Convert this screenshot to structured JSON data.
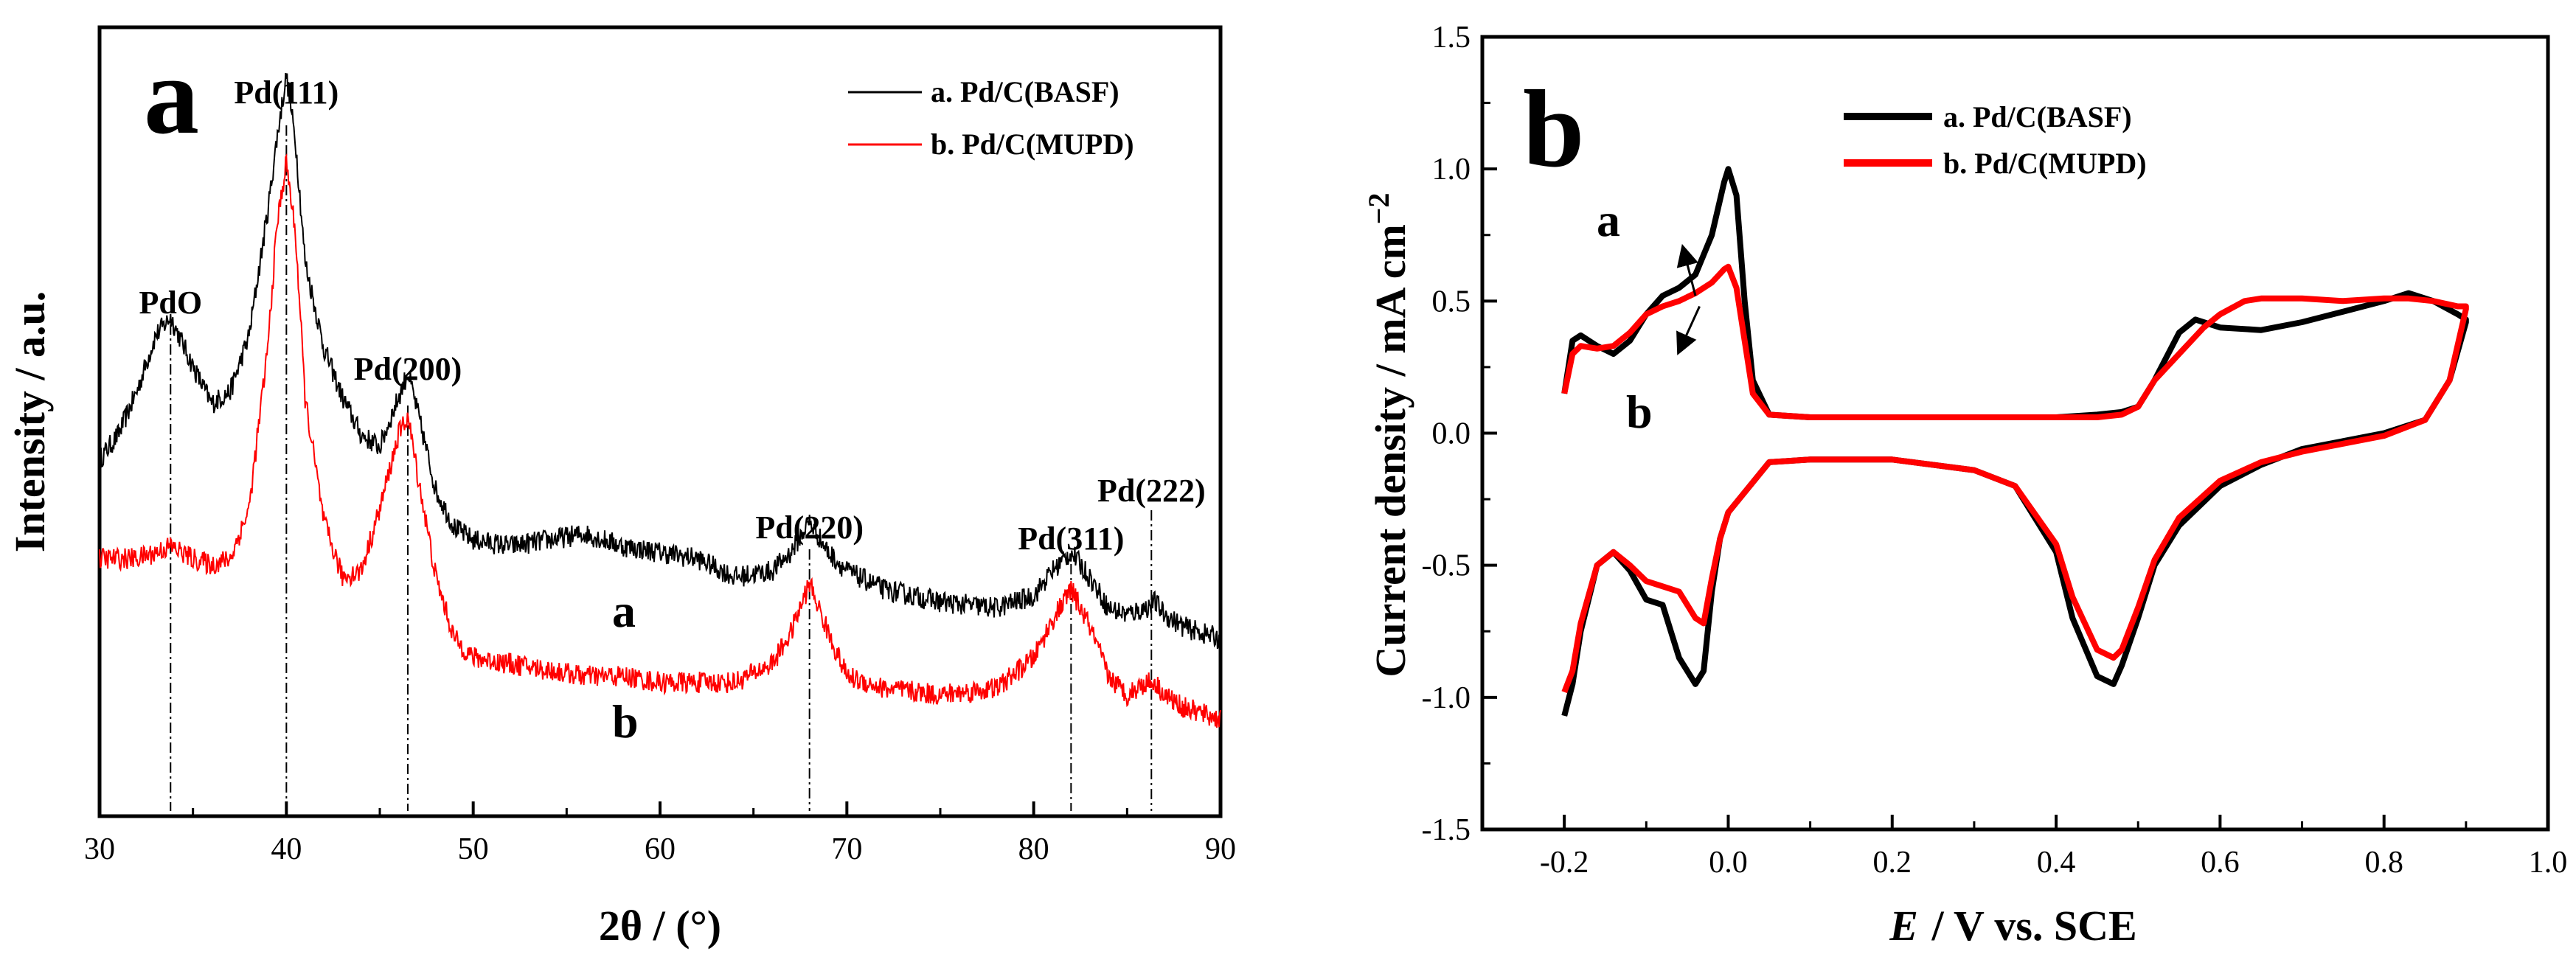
{
  "chart_data": [
    {
      "type": "line",
      "panel": "a",
      "xlabel": "2θ / (°)",
      "ylabel": "Intensity / a.u.",
      "xlim": [
        30,
        90
      ],
      "xticks": [
        "30",
        "40",
        "50",
        "60",
        "70",
        "80",
        "90"
      ],
      "legend": [
        "a. Pd/C(BASF)",
        "b. Pd/C(MUPD)"
      ],
      "colors": {
        "a": "#000000",
        "b": "#ff0000"
      },
      "peaks": [
        {
          "label": "PdO",
          "x": 33.8
        },
        {
          "label": "Pd(111)",
          "x": 40.0
        },
        {
          "label": "Pd(200)",
          "x": 46.5
        },
        {
          "label": "Pd(220)",
          "x": 68.0
        },
        {
          "label": "Pd(311)",
          "x": 82.0
        },
        {
          "label": "Pd(222)",
          "x": 86.3
        }
      ],
      "curve_labels": {
        "a": "a",
        "b": "b"
      },
      "series": [
        {
          "name": "a. Pd/C(BASF)",
          "x": [
            30,
            31,
            32,
            33,
            33.8,
            35,
            36,
            37,
            38,
            39,
            39.5,
            40,
            40.5,
            41,
            42,
            43,
            44,
            45,
            46,
            46.5,
            47,
            48,
            49,
            50,
            52,
            54,
            56,
            58,
            60,
            62,
            64,
            66,
            67,
            68,
            69,
            70,
            72,
            75,
            78,
            80,
            81,
            82,
            83,
            84,
            85,
            86,
            86.5,
            87,
            88,
            90
          ],
          "y": [
            0.52,
            0.56,
            0.63,
            0.72,
            0.75,
            0.67,
            0.61,
            0.63,
            0.72,
            0.92,
            1.04,
            1.14,
            1.03,
            0.84,
            0.7,
            0.62,
            0.56,
            0.54,
            0.62,
            0.66,
            0.6,
            0.47,
            0.41,
            0.39,
            0.38,
            0.39,
            0.4,
            0.38,
            0.37,
            0.36,
            0.33,
            0.34,
            0.37,
            0.42,
            0.37,
            0.34,
            0.31,
            0.29,
            0.28,
            0.3,
            0.34,
            0.37,
            0.33,
            0.28,
            0.27,
            0.28,
            0.29,
            0.27,
            0.25,
            0.23
          ]
        },
        {
          "name": "b. Pd/C(MUPD)",
          "x": [
            30,
            31,
            32,
            33,
            33.8,
            35,
            36,
            37,
            38,
            39,
            39.5,
            40,
            40.5,
            41,
            42,
            43,
            44,
            45,
            46,
            46.5,
            47,
            48,
            49,
            50,
            52,
            54,
            56,
            58,
            60,
            62,
            64,
            66,
            67,
            68,
            69,
            70,
            72,
            75,
            78,
            80,
            81,
            82,
            83,
            84,
            85,
            86,
            86.5,
            87,
            88,
            90
          ],
          "y": [
            0.36,
            0.36,
            0.36,
            0.37,
            0.38,
            0.36,
            0.35,
            0.36,
            0.44,
            0.7,
            0.9,
            1.0,
            0.88,
            0.62,
            0.42,
            0.33,
            0.34,
            0.44,
            0.56,
            0.59,
            0.5,
            0.33,
            0.23,
            0.2,
            0.19,
            0.18,
            0.17,
            0.17,
            0.16,
            0.16,
            0.16,
            0.19,
            0.24,
            0.32,
            0.24,
            0.17,
            0.15,
            0.14,
            0.15,
            0.2,
            0.26,
            0.31,
            0.25,
            0.17,
            0.14,
            0.16,
            0.16,
            0.14,
            0.12,
            0.1
          ]
        }
      ]
    },
    {
      "type": "line",
      "panel": "b",
      "xlabel": "E / V vs. SCE",
      "ylabel": "Current density / mA cm-2",
      "xlim": [
        -0.3,
        1.0
      ],
      "ylim": [
        -1.5,
        1.5
      ],
      "xticks": [
        "-0.2",
        "0.0",
        "0.2",
        "0.4",
        "0.6",
        "0.8",
        "1.0"
      ],
      "yticks": [
        "1.5",
        "1.0",
        "0.5",
        "0.0",
        "-0.5",
        "-1.0",
        "-1.5"
      ],
      "legend": [
        "a. Pd/C(BASF)",
        "b. Pd/C(MUPD)"
      ],
      "colors": {
        "a": "#000000",
        "b": "#ff0000"
      },
      "curve_labels": {
        "a": "a",
        "b": "b"
      },
      "series": [
        {
          "name": "a. Pd/C(BASF)",
          "x": [
            -0.2,
            -0.19,
            -0.18,
            -0.16,
            -0.14,
            -0.12,
            -0.1,
            -0.08,
            -0.06,
            -0.04,
            -0.02,
            -0.005,
            0.0,
            0.01,
            0.02,
            0.03,
            0.05,
            0.1,
            0.2,
            0.3,
            0.4,
            0.45,
            0.48,
            0.5,
            0.52,
            0.55,
            0.57,
            0.6,
            0.65,
            0.7,
            0.75,
            0.8,
            0.83,
            0.86,
            0.89,
            0.9,
            0.9,
            0.88,
            0.85,
            0.8,
            0.75,
            0.7,
            0.65,
            0.6,
            0.55,
            0.52,
            0.5,
            0.48,
            0.47,
            0.45,
            0.42,
            0.4,
            0.35,
            0.3,
            0.2,
            0.1,
            0.05,
            0.0,
            -0.01,
            -0.02,
            -0.03,
            -0.04,
            -0.06,
            -0.08,
            -0.1,
            -0.12,
            -0.14,
            -0.16,
            -0.18,
            -0.19,
            -0.2
          ],
          "y": [
            0.15,
            0.35,
            0.37,
            0.33,
            0.3,
            0.35,
            0.45,
            0.52,
            0.55,
            0.6,
            0.75,
            0.95,
            1.0,
            0.9,
            0.5,
            0.2,
            0.07,
            0.06,
            0.06,
            0.06,
            0.06,
            0.07,
            0.08,
            0.1,
            0.2,
            0.38,
            0.43,
            0.4,
            0.39,
            0.42,
            0.46,
            0.5,
            0.53,
            0.5,
            0.45,
            0.43,
            0.42,
            0.2,
            0.05,
            0.0,
            -0.03,
            -0.06,
            -0.12,
            -0.2,
            -0.35,
            -0.5,
            -0.7,
            -0.88,
            -0.95,
            -0.92,
            -0.7,
            -0.45,
            -0.2,
            -0.14,
            -0.1,
            -0.1,
            -0.11,
            -0.3,
            -0.4,
            -0.6,
            -0.9,
            -0.95,
            -0.85,
            -0.65,
            -0.63,
            -0.52,
            -0.45,
            -0.5,
            -0.75,
            -0.95,
            -1.07
          ]
        },
        {
          "name": "b. Pd/C(MUPD)",
          "x": [
            -0.2,
            -0.19,
            -0.18,
            -0.16,
            -0.14,
            -0.12,
            -0.1,
            -0.08,
            -0.06,
            -0.04,
            -0.02,
            -0.005,
            0.0,
            0.01,
            0.02,
            0.03,
            0.05,
            0.1,
            0.2,
            0.3,
            0.4,
            0.45,
            0.48,
            0.5,
            0.52,
            0.55,
            0.58,
            0.6,
            0.63,
            0.65,
            0.7,
            0.75,
            0.8,
            0.83,
            0.86,
            0.89,
            0.9,
            0.9,
            0.88,
            0.85,
            0.8,
            0.75,
            0.7,
            0.65,
            0.6,
            0.55,
            0.52,
            0.5,
            0.48,
            0.47,
            0.45,
            0.42,
            0.4,
            0.35,
            0.3,
            0.2,
            0.1,
            0.05,
            0.0,
            -0.01,
            -0.02,
            -0.03,
            -0.04,
            -0.06,
            -0.08,
            -0.1,
            -0.12,
            -0.14,
            -0.16,
            -0.18,
            -0.19,
            -0.2
          ],
          "y": [
            0.15,
            0.3,
            0.33,
            0.32,
            0.33,
            0.38,
            0.45,
            0.48,
            0.5,
            0.53,
            0.57,
            0.62,
            0.63,
            0.55,
            0.35,
            0.15,
            0.07,
            0.06,
            0.06,
            0.06,
            0.06,
            0.06,
            0.07,
            0.1,
            0.2,
            0.3,
            0.4,
            0.45,
            0.5,
            0.51,
            0.51,
            0.5,
            0.51,
            0.51,
            0.5,
            0.48,
            0.48,
            0.47,
            0.2,
            0.05,
            -0.01,
            -0.04,
            -0.07,
            -0.11,
            -0.18,
            -0.32,
            -0.48,
            -0.66,
            -0.82,
            -0.85,
            -0.82,
            -0.62,
            -0.42,
            -0.2,
            -0.14,
            -0.1,
            -0.1,
            -0.11,
            -0.3,
            -0.4,
            -0.55,
            -0.72,
            -0.7,
            -0.6,
            -0.58,
            -0.56,
            -0.5,
            -0.45,
            -0.5,
            -0.72,
            -0.9,
            -0.98
          ]
        }
      ],
      "arrows": [
        {
          "label": "a",
          "from": [
            -0.04,
            0.52
          ],
          "to": [
            -0.055,
            0.7
          ]
        },
        {
          "label": "b",
          "from": [
            -0.035,
            0.48
          ],
          "to": [
            -0.06,
            0.31
          ]
        }
      ]
    }
  ]
}
